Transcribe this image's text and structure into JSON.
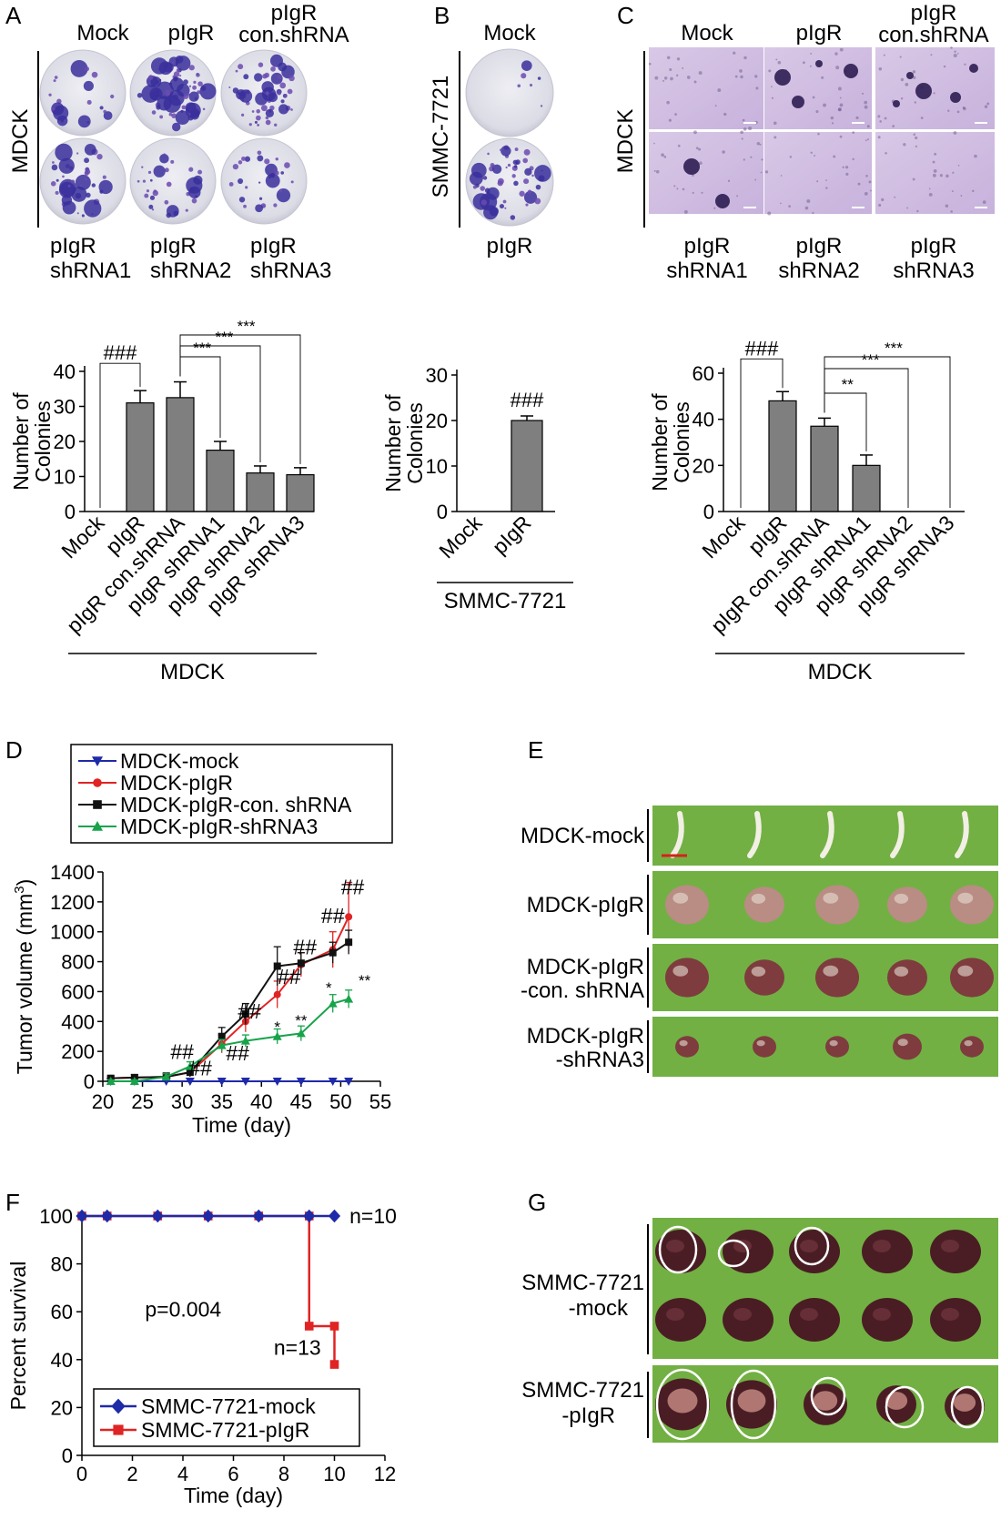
{
  "panels": {
    "A": {
      "letter": "A",
      "cell_line": "MDCK",
      "top_labels": [
        [
          "Mock"
        ],
        [
          "pIgR"
        ],
        [
          "pIgR",
          "con.shRNA"
        ]
      ],
      "bottom_labels": [
        [
          "pIgR",
          "shRNA1"
        ],
        [
          "pIgR",
          "shRNA2"
        ],
        [
          "pIgR",
          "shRNA3"
        ]
      ]
    },
    "B": {
      "letter": "B",
      "cell_line": "SMMC-7721",
      "top_label": "Mock",
      "bottom_label": "pIgR"
    },
    "C": {
      "letter": "C",
      "cell_line": "MDCK",
      "top_labels": [
        [
          "Mock"
        ],
        [
          "pIgR"
        ],
        [
          "pIgR",
          "con.shRNA"
        ]
      ],
      "bottom_labels": [
        [
          "pIgR",
          "shRNA1"
        ],
        [
          "pIgR",
          "shRNA2"
        ],
        [
          "pIgR",
          "shRNA3"
        ]
      ]
    },
    "D": {
      "letter": "D"
    },
    "E": {
      "letter": "E",
      "rows": [
        [
          "MDCK-mock"
        ],
        [
          "MDCK-pIgR"
        ],
        [
          "MDCK-pIgR",
          "-con. shRNA"
        ],
        [
          "MDCK-pIgR",
          "-shRNA3"
        ]
      ],
      "tumor_counts": [
        5,
        5,
        5,
        5
      ]
    },
    "F": {
      "letter": "F"
    },
    "G": {
      "letter": "G",
      "rows": [
        [
          "SMMC-7721",
          "-mock"
        ],
        [
          "SMMC-7721",
          "-pIgR"
        ]
      ]
    }
  },
  "chart_data": [
    {
      "id": "A-bar",
      "type": "bar",
      "categories": [
        "Mock",
        "pIgR",
        "pIgR con.shRNA",
        "pIgR shRNA1",
        "pIgR shRNA2",
        "pIgR shRNA3"
      ],
      "values": [
        0,
        31,
        32.5,
        17.5,
        11,
        10.5
      ],
      "errors": [
        0,
        3.5,
        4.5,
        2.5,
        2,
        2
      ],
      "ylabel": [
        "Number of",
        "Colonies"
      ],
      "ylim": [
        0,
        40
      ],
      "yticks": [
        0,
        10,
        20,
        30,
        40
      ],
      "group_label": "MDCK",
      "significance": [
        {
          "from": 0,
          "to": 1,
          "label": "###"
        },
        {
          "from": 2,
          "to": 3,
          "label": "***"
        },
        {
          "from": 2,
          "to": 4,
          "label": "***"
        },
        {
          "from": 2,
          "to": 5,
          "label": "***"
        }
      ]
    },
    {
      "id": "B-bar",
      "type": "bar",
      "categories": [
        "Mock",
        "pIgR"
      ],
      "values": [
        0,
        20
      ],
      "errors": [
        0,
        1
      ],
      "ylabel": [
        "Number of",
        "Colonies"
      ],
      "ylim": [
        0,
        30
      ],
      "yticks": [
        0,
        10,
        20,
        30
      ],
      "group_label": "SMMC-7721",
      "significance": [
        {
          "on": 1,
          "label": "###"
        }
      ]
    },
    {
      "id": "C-bar",
      "type": "bar",
      "categories": [
        "Mock",
        "pIgR",
        "pIgR con.shRNA",
        "pIgR shRNA1",
        "pIgR shRNA2",
        "pIgR shRNA3"
      ],
      "values": [
        0,
        48,
        37,
        20,
        0,
        0
      ],
      "errors": [
        0,
        4,
        3.5,
        4.5,
        0,
        0
      ],
      "ylabel": [
        "Number of",
        "Colonies"
      ],
      "ylim": [
        0,
        60
      ],
      "yticks": [
        0,
        20,
        40,
        60
      ],
      "group_label": "MDCK",
      "significance": [
        {
          "from": 0,
          "to": 1,
          "label": "###"
        },
        {
          "from": 2,
          "to": 3,
          "label": "**"
        },
        {
          "from": 2,
          "to": 4,
          "label": "***"
        },
        {
          "from": 2,
          "to": 5,
          "label": "***"
        }
      ]
    },
    {
      "id": "D-line",
      "type": "line",
      "xlabel": "Time (day)",
      "ylabel": "Tumor volume (mm",
      "ylabel_sup": "3",
      "ylabel_close": ")",
      "xlim": [
        20,
        55
      ],
      "ylim": [
        0,
        1400
      ],
      "xticks": [
        20,
        25,
        30,
        35,
        40,
        45,
        50,
        55
      ],
      "yticks": [
        0,
        200,
        400,
        600,
        800,
        1000,
        1200,
        1400
      ],
      "series": [
        {
          "name": "MDCK-mock",
          "color": "#1f2aa8",
          "marker": "triangle-down",
          "x": [
            21,
            24,
            28,
            31,
            35,
            38,
            42,
            45,
            49,
            51
          ],
          "y": [
            0,
            0,
            0,
            0,
            0,
            0,
            0,
            0,
            0,
            0
          ],
          "err": [
            0,
            0,
            0,
            0,
            0,
            0,
            0,
            0,
            0,
            0
          ]
        },
        {
          "name": "MDCK-pIgR",
          "color": "#e02424",
          "marker": "circle",
          "x": [
            21,
            24,
            28,
            31,
            35,
            38,
            42,
            45,
            49,
            51
          ],
          "y": [
            20,
            25,
            30,
            60,
            250,
            400,
            580,
            780,
            880,
            1100
          ],
          "err": [
            15,
            20,
            25,
            30,
            60,
            70,
            90,
            80,
            120,
            230
          ]
        },
        {
          "name": "MDCK-pIgR-con. shRNA",
          "color": "#111111",
          "marker": "square",
          "x": [
            21,
            24,
            28,
            31,
            35,
            38,
            42,
            45,
            49,
            51
          ],
          "y": [
            20,
            25,
            30,
            60,
            300,
            450,
            770,
            790,
            860,
            930
          ],
          "err": [
            15,
            20,
            25,
            30,
            60,
            70,
            130,
            70,
            70,
            80
          ]
        },
        {
          "name": "MDCK-pIgR-shRNA3",
          "color": "#17a34a",
          "marker": "triangle-up",
          "x": [
            21,
            24,
            28,
            31,
            35,
            38,
            42,
            45,
            49,
            51
          ],
          "y": [
            0,
            0,
            30,
            100,
            240,
            270,
            300,
            320,
            520,
            550
          ],
          "err": [
            10,
            10,
            20,
            30,
            40,
            40,
            50,
            50,
            60,
            60
          ]
        }
      ],
      "annotations": [
        {
          "x": 30,
          "y": 150,
          "label": "##"
        },
        {
          "x": 32.3,
          "y": 40,
          "label": "##"
        },
        {
          "x": 37,
          "y": 140,
          "label": "##"
        },
        {
          "x": 38.5,
          "y": 420,
          "label": "##"
        },
        {
          "x": 43.5,
          "y": 650,
          "label": "##"
        },
        {
          "x": 45.5,
          "y": 850,
          "label": "##"
        },
        {
          "x": 49,
          "y": 1060,
          "label": "##"
        },
        {
          "x": 51.5,
          "y": 1250,
          "label": "##"
        },
        {
          "x": 42,
          "y": 330,
          "label": "*"
        },
        {
          "x": 45,
          "y": 370,
          "label": "**"
        },
        {
          "x": 48.5,
          "y": 590,
          "label": "*"
        },
        {
          "x": 53,
          "y": 640,
          "label": "**"
        }
      ]
    },
    {
      "id": "F-survival",
      "type": "line",
      "xlabel": "Time (day)",
      "ylabel": "Percent survival",
      "xlim": [
        0,
        12
      ],
      "ylim": [
        0,
        100
      ],
      "xticks": [
        0,
        2,
        4,
        6,
        8,
        10,
        12
      ],
      "yticks": [
        0,
        20,
        40,
        60,
        80,
        100
      ],
      "series": [
        {
          "name": "SMMC-7721-mock",
          "color": "#1f2aa8",
          "marker": "diamond",
          "x": [
            0,
            1,
            3,
            5,
            7,
            9,
            10
          ],
          "y": [
            100,
            100,
            100,
            100,
            100,
            100,
            100
          ],
          "steps": [
            [
              0,
              100
            ],
            [
              10,
              100
            ]
          ]
        },
        {
          "name": "SMMC-7721-pIgR",
          "color": "#e02424",
          "marker": "square",
          "x": [
            0,
            1,
            3,
            5,
            7,
            9,
            9,
            10,
            10
          ],
          "y": [
            100,
            100,
            100,
            100,
            100,
            100,
            54,
            54,
            38
          ],
          "steps": [
            [
              0,
              100
            ],
            [
              9,
              100
            ],
            [
              9,
              54
            ],
            [
              10,
              54
            ],
            [
              10,
              38
            ]
          ]
        }
      ],
      "annotations": [
        {
          "text": "n=10",
          "x": 10.6,
          "y": 100
        },
        {
          "text": "n=13",
          "x": 7.6,
          "y": 45
        },
        {
          "text": "p=0.004",
          "x": 2.5,
          "y": 61
        }
      ]
    }
  ]
}
